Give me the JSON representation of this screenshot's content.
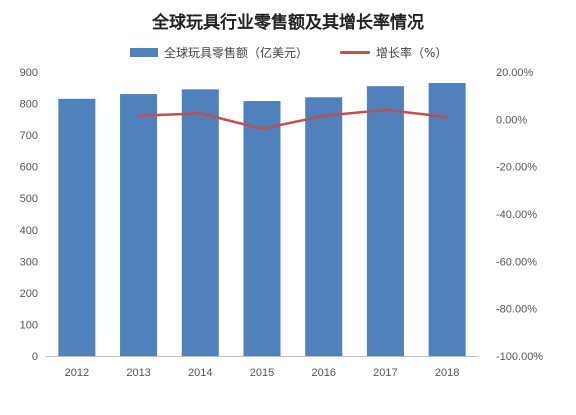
{
  "chart_data": {
    "type": "bar",
    "title": "全球玩具行业零售额及其增长率情况",
    "categories": [
      "2012",
      "2013",
      "2014",
      "2015",
      "2016",
      "2017",
      "2018"
    ],
    "series": [
      {
        "name": "全球玩具零售额（亿美元）",
        "type": "bar",
        "axis": "left",
        "color": "#4f81bd",
        "values": [
          815,
          830,
          845,
          808,
          820,
          855,
          865
        ]
      },
      {
        "name": "增长率（%）",
        "type": "line",
        "axis": "right",
        "color": "#c0504d",
        "values": [
          null,
          1.5,
          2.5,
          -4.0,
          1.5,
          4.0,
          1.0
        ]
      }
    ],
    "y_left": {
      "min": 0,
      "max": 900,
      "step": 100,
      "ticks": [
        "0",
        "100",
        "200",
        "300",
        "400",
        "500",
        "600",
        "700",
        "800",
        "900"
      ]
    },
    "y_right": {
      "min": -100,
      "max": 20,
      "step": 20,
      "ticks": [
        "-100.00%",
        "-80.00%",
        "-60.00%",
        "-40.00%",
        "-20.00%",
        "0.00%",
        "20.00%"
      ]
    },
    "grid": false,
    "legend_position": "top"
  }
}
